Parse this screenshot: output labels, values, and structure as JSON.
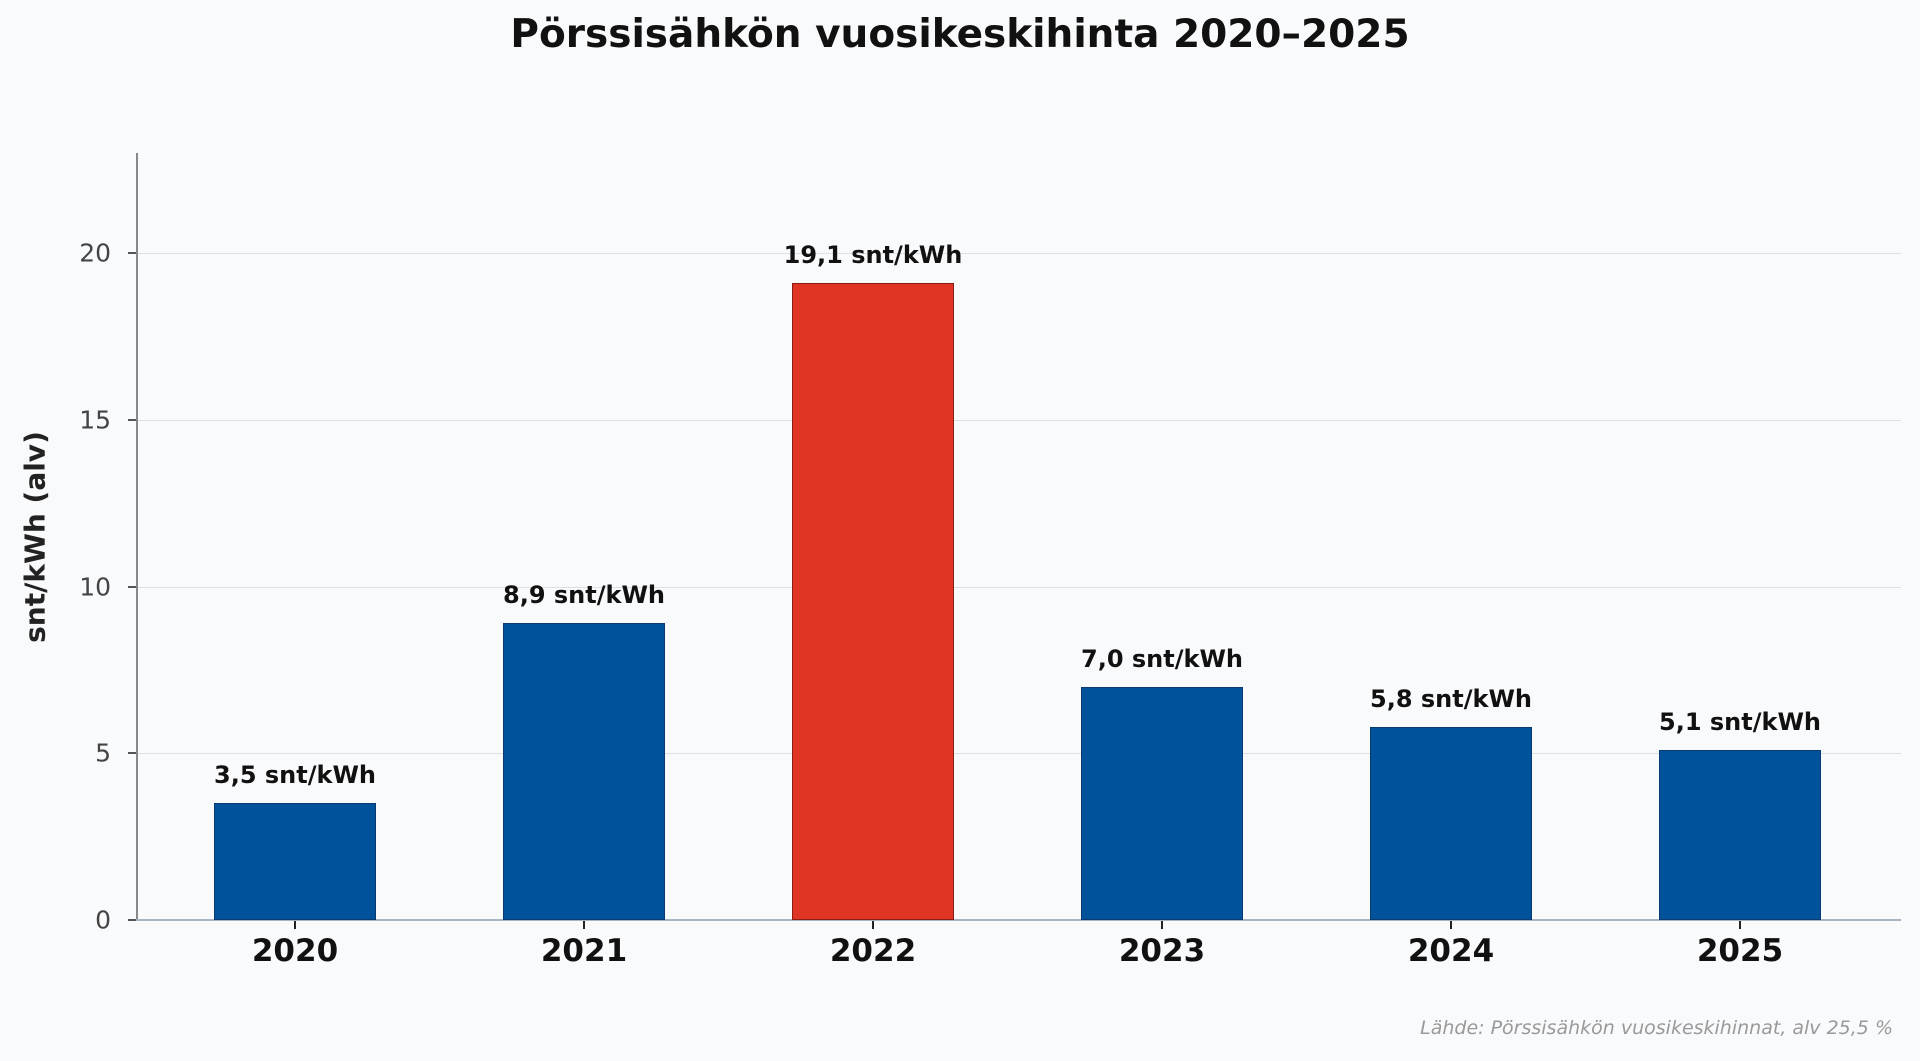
{
  "chart_data": {
    "type": "bar",
    "title": "Pörssisähkön vuosikeskihinta 2020–2025",
    "xlabel": "",
    "ylabel": "snt/kWh (alv)",
    "categories": [
      "2020",
      "2021",
      "2022",
      "2023",
      "2024",
      "2025"
    ],
    "values": [
      3.5,
      8.9,
      19.1,
      7.0,
      5.8,
      5.1
    ],
    "value_labels": [
      "3,5 snt/kWh",
      "8,9 snt/kWh",
      "19,1 snt/kWh",
      "7,0 snt/kWh",
      "5,8 snt/kWh",
      "5,1 snt/kWh"
    ],
    "highlight_index": 2,
    "ylim": [
      0,
      23
    ],
    "yticks": [
      0,
      5,
      10,
      15,
      20
    ],
    "grid": true,
    "legend": null,
    "colors": {
      "default": "#00539b",
      "highlight": "#e03524",
      "edge": "#0b3a6e"
    },
    "source_note": "Lähde: Pörssisähkön vuosikeskihinnat, alv 25,5 %"
  }
}
